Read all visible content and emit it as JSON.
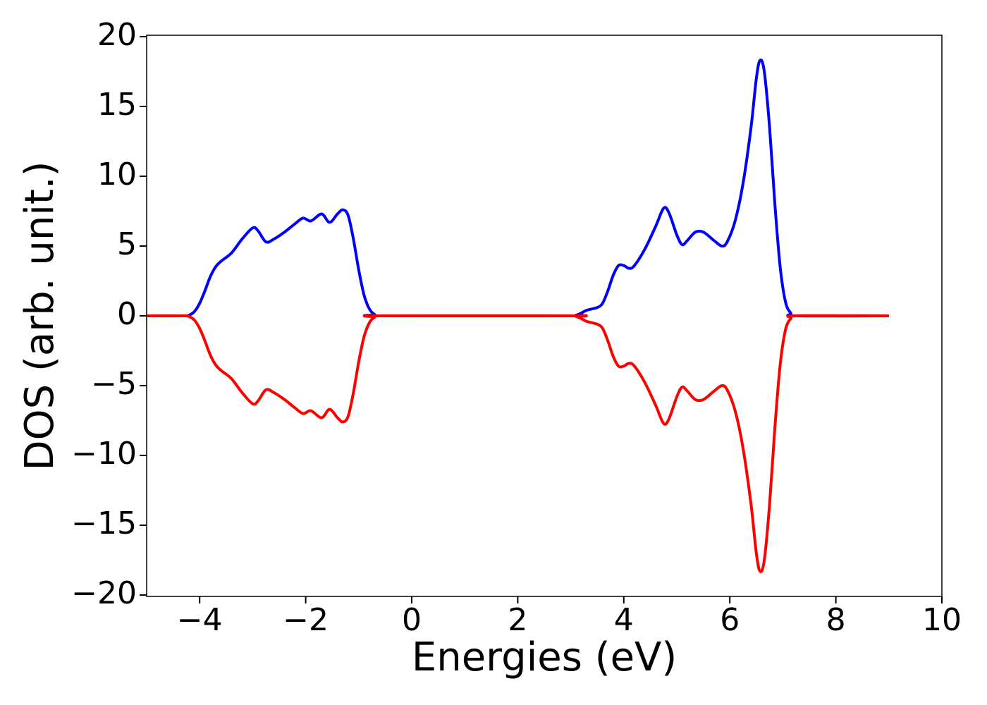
{
  "chart_data": {
    "type": "line",
    "xlabel": "Energies (eV)",
    "ylabel": "DOS (arb. unit.)",
    "xlim": [
      -5,
      10
    ],
    "ylim": [
      -20.1,
      20.1
    ],
    "xticks": [
      {
        "value": -4,
        "label": "−4"
      },
      {
        "value": -2,
        "label": "−2"
      },
      0,
      2,
      4,
      6,
      8,
      10
    ],
    "yticks": [
      {
        "value": -20,
        "label": "−20"
      },
      {
        "value": -15,
        "label": "−15"
      },
      {
        "value": -10,
        "label": "−10"
      },
      {
        "value": -5,
        "label": "−5"
      },
      0,
      5,
      10,
      15,
      20
    ],
    "x": [
      -5,
      -4.3,
      -4.2,
      -4.1,
      -4.0,
      -3.9,
      -3.8,
      -3.7,
      -3.6,
      -3.4,
      -3.2,
      -3.0,
      -2.9,
      -2.75,
      -2.6,
      -2.4,
      -2.2,
      -2.05,
      -1.9,
      -1.7,
      -1.55,
      -1.4,
      -1.3,
      -1.2,
      -1.1,
      -1.0,
      -0.9,
      -0.8,
      -0.7,
      -0.6,
      3.0,
      3.1,
      3.2,
      3.3,
      3.5,
      3.6,
      3.7,
      3.8,
      3.9,
      4.0,
      4.1,
      4.2,
      4.4,
      4.6,
      4.75,
      4.85,
      5.0,
      5.1,
      5.2,
      5.35,
      5.5,
      5.7,
      5.85,
      5.95,
      6.1,
      6.25,
      6.4,
      6.5,
      6.57,
      6.65,
      6.75,
      6.85,
      6.95,
      7.05,
      7.15,
      7.25,
      9.0
    ],
    "series": [
      {
        "color": "#0000ff",
        "values": [
          0,
          0,
          0.05,
          0.3,
          0.9,
          1.8,
          2.8,
          3.5,
          3.9,
          4.5,
          5.5,
          6.3,
          6.1,
          5.3,
          5.5,
          6.0,
          6.6,
          7.0,
          6.8,
          7.3,
          6.7,
          7.3,
          7.6,
          7.2,
          5.5,
          3.3,
          1.5,
          0.5,
          0.1,
          0,
          0,
          0.05,
          0.2,
          0.4,
          0.6,
          0.9,
          1.8,
          2.9,
          3.6,
          3.6,
          3.4,
          3.6,
          4.8,
          6.4,
          7.7,
          7.4,
          5.8,
          5.1,
          5.4,
          6.0,
          6.0,
          5.4,
          5.0,
          5.3,
          6.8,
          9.5,
          13.5,
          17.0,
          18.3,
          17.5,
          13.5,
          8.0,
          3.5,
          1.0,
          0.2,
          0,
          0
        ]
      },
      {
        "color": "#ff0000",
        "values": [
          0,
          0,
          -0.05,
          -0.3,
          -0.9,
          -1.8,
          -2.8,
          -3.5,
          -3.9,
          -4.5,
          -5.5,
          -6.3,
          -6.1,
          -5.3,
          -5.5,
          -6.0,
          -6.6,
          -7.0,
          -6.8,
          -7.3,
          -6.7,
          -7.3,
          -7.6,
          -7.2,
          -5.5,
          -3.3,
          -1.5,
          -0.5,
          -0.1,
          0,
          0,
          -0.05,
          -0.2,
          -0.4,
          -0.6,
          -0.9,
          -1.8,
          -2.9,
          -3.6,
          -3.6,
          -3.4,
          -3.6,
          -4.8,
          -6.4,
          -7.7,
          -7.4,
          -5.8,
          -5.1,
          -5.4,
          -6.0,
          -6.0,
          -5.4,
          -5.0,
          -5.3,
          -6.8,
          -9.5,
          -13.5,
          -17.0,
          -18.3,
          -17.5,
          -13.5,
          -8.0,
          -3.5,
          -1.0,
          -0.2,
          0,
          0
        ]
      }
    ]
  }
}
